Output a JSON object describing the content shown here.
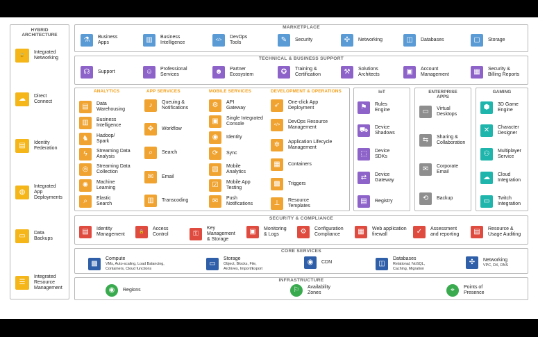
{
  "hybrid": {
    "title": "HYBRID\nARCHITECTURE",
    "items": [
      {
        "label": "Integrated\nNetworking",
        "icon": "lock-icon"
      },
      {
        "label": "Direct\nConnect",
        "icon": "cloud-icon"
      },
      {
        "label": "Identity\nFederation",
        "icon": "id-card-icon"
      },
      {
        "label": "Integrated\nApp\nDeployments",
        "icon": "balloon-icon"
      },
      {
        "label": "Data\nBackups",
        "icon": "folder-icon"
      },
      {
        "label": "Integrated\nResource\nManagement",
        "icon": "sliders-icon"
      }
    ]
  },
  "marketplace": {
    "title": "MARKETPLACE",
    "items": [
      {
        "label": "Business\nApps",
        "icon": "test-tube-icon"
      },
      {
        "label": "Business\nIntelligence",
        "icon": "bar-chart-icon"
      },
      {
        "label": "DevOps\nTools",
        "icon": "code-icon"
      },
      {
        "label": "Security",
        "icon": "pen-icon"
      },
      {
        "label": "Networking",
        "icon": "network-icon"
      },
      {
        "label": "Databases",
        "icon": "database-icon"
      },
      {
        "label": "Storage",
        "icon": "storage-box-icon"
      }
    ]
  },
  "support": {
    "title": "TECHNICAL & BUSINESS SUPPORT",
    "items": [
      {
        "label": "Support",
        "icon": "headset-icon"
      },
      {
        "label": "Professional\nServices",
        "icon": "person-icon"
      },
      {
        "label": "Partner\nEcosystem",
        "icon": "people-icon"
      },
      {
        "label": "Training &\nCertification",
        "icon": "certificate-icon"
      },
      {
        "label": "Solutions\nArchitects",
        "icon": "architect-icon"
      },
      {
        "label": "Account\nManagement",
        "icon": "briefcase-icon"
      },
      {
        "label": "Security &\nBilling Reports",
        "icon": "report-icon"
      }
    ]
  },
  "analytics": {
    "title": "ANALYTICS",
    "items": [
      {
        "label": "Data\nWarehousing",
        "icon": "document-icon"
      },
      {
        "label": "Business\nIntelligence",
        "icon": "bar-chart-icon"
      },
      {
        "label": "Hadoop/\nSpark",
        "icon": "elephant-icon"
      },
      {
        "label": "Streaming Data\nAnalysis",
        "icon": "lightning-icon"
      },
      {
        "label": "Streaming Data\nCollection",
        "icon": "cylinder-icon"
      },
      {
        "label": "Machine\nLearning",
        "icon": "brain-icon"
      },
      {
        "label": "Elastic\nSearch",
        "icon": "magnifier-icon"
      }
    ]
  },
  "appservices": {
    "title": "APP SERVICES",
    "items": [
      {
        "label": "Queuing &\nNotifications",
        "icon": "bell-icon"
      },
      {
        "label": "Workflow",
        "icon": "workflow-icon"
      },
      {
        "label": "Search",
        "icon": "search-icon"
      },
      {
        "label": "Email",
        "icon": "envelope-icon"
      },
      {
        "label": "Transcoding",
        "icon": "film-icon"
      }
    ]
  },
  "mobile": {
    "title": "MOBILE SERVICES",
    "items": [
      {
        "label": "API\nGateway",
        "icon": "api-icon"
      },
      {
        "label": "Single Integrated\nConsole",
        "icon": "console-icon"
      },
      {
        "label": "Identity",
        "icon": "fingerprint-icon"
      },
      {
        "label": "Sync",
        "icon": "sync-icon"
      },
      {
        "label": "Mobile\nAnalytics",
        "icon": "chart-icon"
      },
      {
        "label": "Mobile App\nTesting",
        "icon": "checklist-icon"
      },
      {
        "label": "Push\nNotifications",
        "icon": "message-icon"
      }
    ]
  },
  "devops": {
    "title": "DEVELOPMENT & OPERATIONS",
    "items": [
      {
        "label": "One-click App\nDeployment",
        "icon": "rocket-icon"
      },
      {
        "label": "DevOps Resource\nManagement",
        "icon": "code-icon"
      },
      {
        "label": "Application Lifecycle\nManagement",
        "icon": "lifecycle-icon"
      },
      {
        "label": "Containers",
        "icon": "containers-icon"
      },
      {
        "label": "Triggers",
        "icon": "chip-icon"
      },
      {
        "label": "Resource\nTemplates",
        "icon": "stamp-icon"
      }
    ]
  },
  "iot": {
    "title": "IoT",
    "items": [
      {
        "label": "Rules\nEngine",
        "icon": "rules-icon"
      },
      {
        "label": "Device\nShadows",
        "icon": "car-icon"
      },
      {
        "label": "Device\nSDKs",
        "icon": "sdk-icon"
      },
      {
        "label": "Device\nGateway",
        "icon": "gateway-icon"
      },
      {
        "label": "Registry",
        "icon": "registry-icon"
      }
    ]
  },
  "enterprise": {
    "title": "ENTERPRISE\nAPPS",
    "items": [
      {
        "label": "Virtual\nDesktops",
        "icon": "monitor-icon"
      },
      {
        "label": "Sharing &\nCollaboration",
        "icon": "share-icon"
      },
      {
        "label": "Corporate\nEmail",
        "icon": "envelope-icon"
      },
      {
        "label": "Backup",
        "icon": "backup-icon"
      }
    ]
  },
  "gaming": {
    "title": "GAMING",
    "items": [
      {
        "label": "3D Game\nEngine",
        "icon": "cube-icon"
      },
      {
        "label": "Character\nDesigner",
        "icon": "swords-icon"
      },
      {
        "label": "Multiplayer\nService",
        "icon": "multiplayer-icon"
      },
      {
        "label": "Cloud\nIntegration",
        "icon": "cloud-icon"
      },
      {
        "label": "Twitch\nIntegration",
        "icon": "twitch-icon"
      }
    ]
  },
  "security": {
    "title": "SECURITY & COMPLIANCE",
    "items": [
      {
        "label": "Identity\nManagement",
        "icon": "id-card-icon"
      },
      {
        "label": "Access\nControl",
        "icon": "lock-icon"
      },
      {
        "label": "Key\nManagement\n& Storage",
        "icon": "key-icon"
      },
      {
        "label": "Monitoring\n& Logs",
        "icon": "monitor-logs-icon"
      },
      {
        "label": "Configuration\nCompliance",
        "icon": "config-icon"
      },
      {
        "label": "Web application\nfirewall",
        "icon": "firewall-icon"
      },
      {
        "label": "Assessment\nand reporting",
        "icon": "assessment-icon"
      },
      {
        "label": "Resource &\nUsage Auditing",
        "icon": "audit-icon"
      }
    ]
  },
  "core": {
    "title": "CORE SERVICES",
    "items": [
      {
        "label": "Compute",
        "sub": "VMs, Auto-scaling, Load Balancing,\nContainers, Cloud functions",
        "icon": "cpu-icon"
      },
      {
        "label": "Storage",
        "sub": "Object, Blocks, File,\nArchives, Import/Export",
        "icon": "storage-icon"
      },
      {
        "label": "CDN",
        "sub": "",
        "icon": "globe-icon"
      },
      {
        "label": "Databases",
        "sub": "Relational, NoSQL,\nCaching, Migration",
        "icon": "database-icon"
      },
      {
        "label": "Networking",
        "sub": "VPC, DX, DNS",
        "icon": "network-icon"
      }
    ]
  },
  "infra": {
    "title": "INFRASTRUCTURE",
    "items": [
      {
        "label": "Regions",
        "icon": "globe-icon"
      },
      {
        "label": "Availability\nZones",
        "icon": "zones-icon"
      },
      {
        "label": "Points of\nPresence",
        "icon": "pin-icon"
      }
    ]
  },
  "colors": {
    "marketplace": "#5a9bd5",
    "support": "#8e63c9",
    "apps": "#f0a330",
    "iot": "#8e63c9",
    "enterprise": "#8e8e8e",
    "gaming": "#1fb5ac",
    "security": "#e04b3f",
    "core": "#2f5fa8",
    "infra": "#3aaa4f",
    "hybrid": "#f4b619"
  }
}
